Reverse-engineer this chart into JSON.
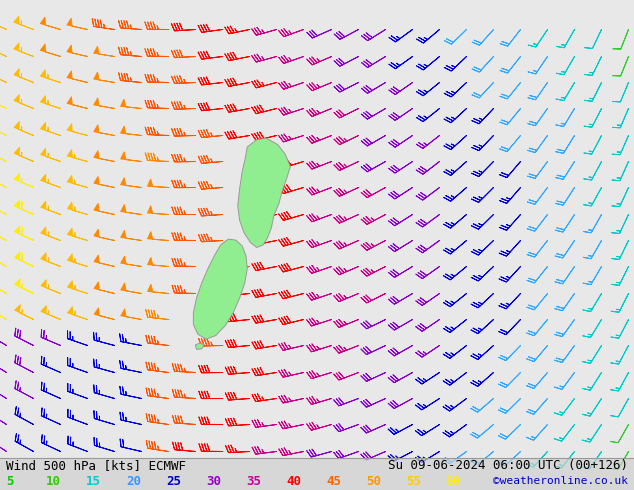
{
  "title_left": "Wind 500 hPa [kts] ECMWF",
  "title_right": "Su 09-06-2024 06:00 UTC (00+126)",
  "credit": "©weatheronline.co.uk",
  "legend_values": [
    5,
    10,
    15,
    20,
    25,
    30,
    35,
    40,
    45,
    50,
    55,
    60
  ],
  "legend_colors": [
    "#00cc00",
    "#33cc00",
    "#00cccc",
    "#3399ff",
    "#0000cc",
    "#9900cc",
    "#cc0099",
    "#ff0000",
    "#ff6600",
    "#ff9900",
    "#ffcc00",
    "#ffee00"
  ],
  "bg_color": "#e8e8e8",
  "barb_grid_nx": 24,
  "barb_grid_ny": 17,
  "nz_land_color": "#90ee90",
  "title_fontsize": 9,
  "credit_color": "#0000cc",
  "credit_fontsize": 8
}
